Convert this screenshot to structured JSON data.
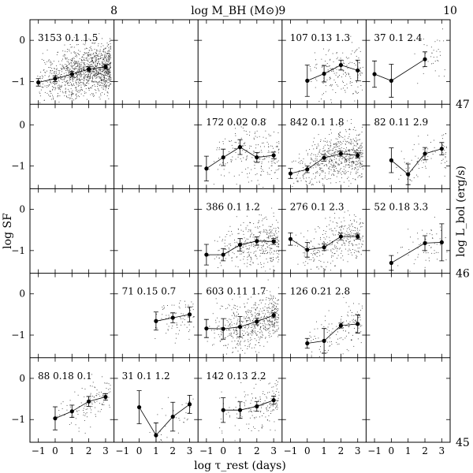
{
  "chart_data": {
    "type": "scatter",
    "grid": false,
    "layout": "5 x 5 grid of panels; columns are bins of log M_BH, rows are bins of log L_bol (brightest at top)",
    "xlabel": "log τ_rest (days)",
    "ylabel": "log SF",
    "top_axis_label": "log M_BH (M⊙)",
    "right_axis_label": "log L_bol (erg/s)",
    "top_ticks": [
      {
        "label": "8",
        "after_col": 0
      },
      {
        "label": "9",
        "after_col": 2
      },
      {
        "label": "10",
        "after_col": 4
      }
    ],
    "right_ticks": [
      {
        "label": "47",
        "after_row": 0
      },
      {
        "label": "46",
        "after_row": 2
      },
      {
        "label": "45",
        "after_row": 4
      }
    ],
    "x_ticks": [
      -1,
      0,
      1,
      2,
      3
    ],
    "y_ticks": [
      0,
      -1
    ],
    "xlim": [
      -1.5,
      3.5
    ],
    "ylim": [
      -1.55,
      0.5
    ],
    "dot_color": "#333333",
    "panels": [
      {
        "row": 0,
        "col": 0,
        "label": "3153  0.1  1.5",
        "points": [
          [
            -1,
            -1.02
          ],
          [
            0,
            -0.93
          ],
          [
            1,
            -0.82
          ],
          [
            2,
            -0.7
          ],
          [
            3,
            -0.64
          ]
        ],
        "errors": [
          0.09,
          0.07,
          0.07,
          0.06,
          0.05
        ],
        "scatter_count": 1300,
        "scatter_x": [
          -1.1,
          3.3
        ],
        "scatter_spread": 0.3
      },
      {
        "row": 0,
        "col": 3,
        "label": "107  0.13  1.3",
        "points": [
          [
            0,
            -0.98
          ],
          [
            1,
            -0.81
          ],
          [
            2,
            -0.6
          ],
          [
            3,
            -0.73
          ]
        ],
        "errors": [
          0.38,
          0.2,
          0.12,
          0.25
        ],
        "scatter_count": 170,
        "scatter_x": [
          -0.3,
          3.3
        ],
        "scatter_spread": 0.32
      },
      {
        "row": 0,
        "col": 4,
        "label": "37  0.1  2.4",
        "points": [
          [
            -1,
            -0.82
          ],
          [
            0,
            -0.98
          ],
          [
            2,
            -0.46
          ],
          [
            3,
            null
          ]
        ],
        "errors": [
          0.32,
          0.4,
          0.18,
          null
        ],
        "scatter_count": 35,
        "scatter_x": [
          1.2,
          3.2
        ],
        "scatter_spread": 0.3
      },
      {
        "row": 1,
        "col": 2,
        "label": "172  0.02  0.8",
        "points": [
          [
            -1,
            -1.06
          ],
          [
            0,
            -0.79
          ],
          [
            1,
            -0.54
          ],
          [
            2,
            -0.79
          ],
          [
            3,
            -0.74
          ]
        ],
        "errors": [
          0.3,
          0.2,
          0.18,
          0.12,
          0.08
        ],
        "scatter_count": 220,
        "scatter_x": [
          -0.9,
          3.3
        ],
        "scatter_spread": 0.32
      },
      {
        "row": 1,
        "col": 3,
        "label": "842  0.1  1.8",
        "points": [
          [
            -1,
            -1.18
          ],
          [
            0,
            -1.08
          ],
          [
            1,
            -0.8
          ],
          [
            2,
            -0.7
          ],
          [
            3,
            -0.74
          ]
        ],
        "errors": [
          0.12,
          0.08,
          0.08,
          0.06,
          0.06
        ],
        "scatter_count": 650,
        "scatter_x": [
          -1.0,
          3.3
        ],
        "scatter_spread": 0.3
      },
      {
        "row": 1,
        "col": 4,
        "label": "82  0.11  2.9",
        "points": [
          [
            0,
            -0.86
          ],
          [
            1,
            -1.2
          ],
          [
            2,
            -0.7
          ],
          [
            3,
            -0.58
          ]
        ],
        "errors": [
          0.3,
          0.25,
          0.15,
          0.15
        ],
        "scatter_count": 90,
        "scatter_x": [
          -0.2,
          3.3
        ],
        "scatter_spread": 0.3
      },
      {
        "row": 2,
        "col": 2,
        "label": "386  0.1  1.2",
        "points": [
          [
            -1,
            -1.1
          ],
          [
            0,
            -1.1
          ],
          [
            1,
            -0.86
          ],
          [
            2,
            -0.77
          ],
          [
            3,
            -0.78
          ]
        ],
        "errors": [
          0.25,
          0.15,
          0.15,
          0.1,
          0.07
        ],
        "scatter_count": 380,
        "scatter_x": [
          -0.9,
          3.3
        ],
        "scatter_spread": 0.3
      },
      {
        "row": 2,
        "col": 3,
        "label": "276  0.1  2.3",
        "points": [
          [
            -1,
            -0.72
          ],
          [
            0,
            -0.98
          ],
          [
            1,
            -0.92
          ],
          [
            2,
            -0.66
          ],
          [
            3,
            -0.66
          ]
        ],
        "errors": [
          0.15,
          0.18,
          0.08,
          0.08,
          0.06
        ],
        "scatter_count": 300,
        "scatter_x": [
          -1.0,
          3.3
        ],
        "scatter_spread": 0.28
      },
      {
        "row": 2,
        "col": 4,
        "label": "52  0.18  3.3",
        "points": [
          [
            0,
            -1.3
          ],
          [
            2,
            -0.82
          ],
          [
            3,
            -0.8
          ]
        ],
        "errors": [
          0.18,
          0.18,
          0.45
        ],
        "scatter_count": 60,
        "scatter_x": [
          0.0,
          3.3
        ],
        "scatter_spread": 0.3
      },
      {
        "row": 3,
        "col": 1,
        "label": "71  0.15  0.7",
        "points": [
          [
            1,
            -0.66
          ],
          [
            2,
            -0.58
          ],
          [
            3,
            -0.5
          ]
        ],
        "errors": [
          0.22,
          0.12,
          0.18
        ],
        "scatter_count": 80,
        "scatter_x": [
          0.6,
          3.3
        ],
        "scatter_spread": 0.3
      },
      {
        "row": 3,
        "col": 2,
        "label": "603  0.11  1.7",
        "points": [
          [
            -1,
            -0.84
          ],
          [
            0,
            -0.85
          ],
          [
            1,
            -0.8
          ],
          [
            2,
            -0.67
          ],
          [
            3,
            -0.52
          ]
        ],
        "errors": [
          0.22,
          0.25,
          0.25,
          0.08,
          0.06
        ],
        "scatter_count": 550,
        "scatter_x": [
          -1.0,
          3.3
        ],
        "scatter_spread": 0.3
      },
      {
        "row": 3,
        "col": 3,
        "label": "126  0.21  2.8",
        "points": [
          [
            0,
            -1.2
          ],
          [
            1,
            -1.14
          ],
          [
            2,
            -0.77
          ],
          [
            3,
            -0.73
          ]
        ],
        "errors": [
          0.12,
          0.3,
          0.06,
          0.22
        ],
        "scatter_count": 140,
        "scatter_x": [
          -0.2,
          3.3
        ],
        "scatter_spread": 0.3
      },
      {
        "row": 4,
        "col": 0,
        "label": "88  0.18  0.1",
        "points": [
          [
            0,
            -0.97
          ],
          [
            1,
            -0.8
          ],
          [
            2,
            -0.56
          ],
          [
            3,
            -0.45
          ]
        ],
        "errors": [
          0.28,
          0.15,
          0.12,
          0.08
        ],
        "scatter_count": 110,
        "scatter_x": [
          -0.2,
          3.3
        ],
        "scatter_spread": 0.28
      },
      {
        "row": 4,
        "col": 1,
        "label": "31  0.1  1.2",
        "points": [
          [
            0,
            -0.7
          ],
          [
            1,
            -1.38
          ],
          [
            2,
            -0.93
          ],
          [
            3,
            -0.63
          ]
        ],
        "errors": [
          0.4,
          0.3,
          0.35,
          0.22
        ],
        "scatter_count": 40,
        "scatter_x": [
          -0.2,
          3.2
        ],
        "scatter_spread": 0.3
      },
      {
        "row": 4,
        "col": 2,
        "label": "142  0.13  2.2",
        "points": [
          [
            0,
            -0.77
          ],
          [
            1,
            -0.77
          ],
          [
            2,
            -0.68
          ],
          [
            3,
            -0.53
          ]
        ],
        "errors": [
          0.3,
          0.2,
          0.12,
          0.1
        ],
        "scatter_count": 160,
        "scatter_x": [
          -0.3,
          3.3
        ],
        "scatter_spread": 0.3
      }
    ]
  }
}
